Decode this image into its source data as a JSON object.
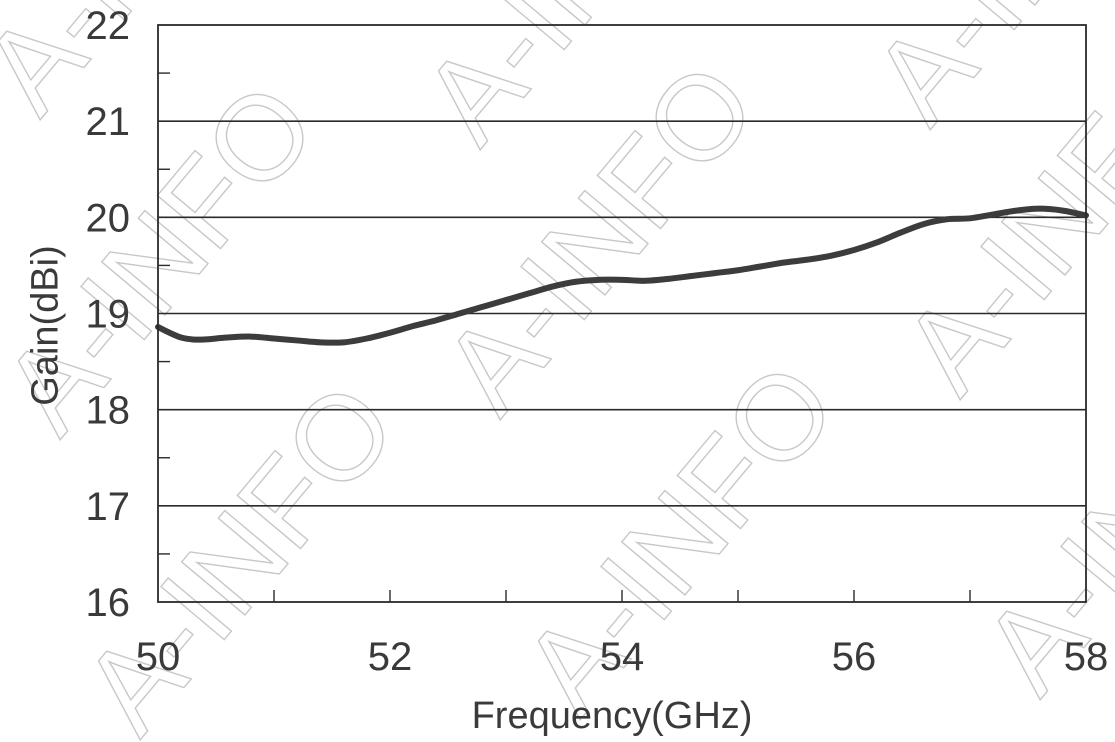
{
  "watermark": {
    "text": "A-INFO",
    "color": "#c8c8c8"
  },
  "chart_data": {
    "type": "line",
    "title": "",
    "xlabel": "Frequency(GHz)",
    "ylabel": "Gain(dBi)",
    "xlim": [
      50,
      58
    ],
    "ylim": [
      16,
      22
    ],
    "x_ticks": [
      50,
      52,
      54,
      56,
      58
    ],
    "x_minor_ticks": [
      51,
      53,
      55,
      57
    ],
    "y_ticks": [
      16,
      17,
      18,
      19,
      20,
      21,
      22
    ],
    "y_minor_ticks": [
      16.5,
      17.5,
      18.5,
      19.5,
      20.5,
      21.5
    ],
    "grid": "horizontal major gridlines",
    "legend": "none",
    "line_color": "#3c3c3c",
    "series": [
      {
        "x": [
          50.0,
          50.1,
          50.2,
          50.3,
          50.4,
          50.6,
          50.8,
          51.0,
          51.2,
          51.4,
          51.6,
          51.8,
          52.0,
          52.2,
          52.4,
          52.6,
          52.8,
          53.0,
          53.2,
          53.4,
          53.6,
          53.8,
          54.0,
          54.2,
          54.4,
          54.6,
          54.8,
          55.0,
          55.2,
          55.4,
          55.6,
          55.8,
          56.0,
          56.2,
          56.4,
          56.6,
          56.8,
          57.0,
          57.2,
          57.4,
          57.6,
          57.8,
          58.0
        ],
        "values": [
          18.86,
          18.8,
          18.75,
          18.73,
          18.73,
          18.75,
          18.76,
          18.74,
          18.72,
          18.7,
          18.7,
          18.74,
          18.8,
          18.87,
          18.93,
          19.0,
          19.07,
          19.14,
          19.21,
          19.28,
          19.33,
          19.35,
          19.35,
          19.34,
          19.36,
          19.39,
          19.42,
          19.45,
          19.49,
          19.53,
          19.56,
          19.6,
          19.66,
          19.74,
          19.84,
          19.93,
          19.98,
          19.99,
          20.03,
          20.07,
          20.09,
          20.07,
          20.02
        ]
      }
    ]
  }
}
